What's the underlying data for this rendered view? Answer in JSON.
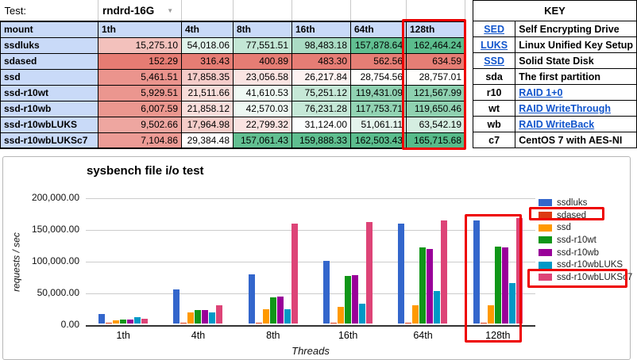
{
  "header": {
    "test_label": "Test:",
    "test_value": "rndrd-16G"
  },
  "table": {
    "columns": [
      "mount",
      "1th",
      "4th",
      "8th",
      "16th",
      "64th",
      "128th"
    ],
    "rows": [
      {
        "name": "ssdluks",
        "values": [
          "15,275.10",
          "54,018.06",
          "77,551.51",
          "98,483.18",
          "157,878.64",
          "162,464.24"
        ]
      },
      {
        "name": "sdased",
        "values": [
          "152.29",
          "316.43",
          "400.89",
          "483.30",
          "562.56",
          "634.59"
        ]
      },
      {
        "name": "ssd",
        "values": [
          "5,461.51",
          "17,858.35",
          "23,056.58",
          "26,217.84",
          "28,754.56",
          "28,757.01"
        ]
      },
      {
        "name": "ssd-r10wt",
        "values": [
          "5,929.51",
          "21,511.66",
          "41,610.53",
          "75,251.12",
          "119,431.09",
          "121,567.99"
        ]
      },
      {
        "name": "ssd-r10wb",
        "values": [
          "6,007.59",
          "21,858.12",
          "42,570.03",
          "76,231.28",
          "117,753.71",
          "119,650.46"
        ]
      },
      {
        "name": "ssd-r10wbLUKS",
        "values": [
          "9,502.66",
          "17,964.98",
          "22,799.32",
          "31,124.00",
          "51,061.11",
          "63,542.19"
        ]
      },
      {
        "name": "ssd-r10wbLUKSc7",
        "values": [
          "7,104.86",
          "29,384.48",
          "157,061.43",
          "159,888.33",
          "162,503.43",
          "165,715.68"
        ]
      }
    ],
    "heatmap": {
      "min": 152.29,
      "mid": 29070,
      "max": 165715.68,
      "min_color": "#E67C73",
      "mid_color": "#FFFFFF",
      "max_color": "#57BB8A"
    }
  },
  "key": {
    "title": "KEY",
    "rows": [
      {
        "abbr": "SED",
        "desc": "Self Encrypting Drive",
        "abbr_link": true,
        "desc_link": false
      },
      {
        "abbr": "LUKS",
        "desc": "Linux Unified Key Setup",
        "abbr_link": true,
        "desc_link": false
      },
      {
        "abbr": "SSD",
        "desc": "Solid State Disk",
        "abbr_link": true,
        "desc_link": false
      },
      {
        "abbr": "sda",
        "desc": "The first partition",
        "abbr_link": false,
        "desc_link": false
      },
      {
        "abbr": "r10",
        "desc": "RAID 1+0",
        "abbr_link": false,
        "desc_link": true
      },
      {
        "abbr": "wt",
        "desc": "RAID WriteThrough",
        "abbr_link": false,
        "desc_link": true
      },
      {
        "abbr": "wb",
        "desc": "RAID WriteBack",
        "abbr_link": false,
        "desc_link": true
      },
      {
        "abbr": "c7",
        "desc": "CentOS 7 with AES-NI",
        "abbr_link": false,
        "desc_link": false
      }
    ]
  },
  "chart_data": {
    "type": "bar",
    "title": "sysbench file i/o test",
    "xlabel": "Threads",
    "ylabel": "requests / sec",
    "categories": [
      "1th",
      "4th",
      "8th",
      "16th",
      "64th",
      "128th"
    ],
    "series": [
      {
        "name": "ssdluks",
        "color": "#3366CC",
        "values": [
          15275.1,
          54018.06,
          77551.51,
          98483.18,
          157878.64,
          162464.24
        ]
      },
      {
        "name": "sdased",
        "color": "#DC3912",
        "values": [
          152.29,
          316.43,
          400.89,
          483.3,
          562.56,
          634.59
        ]
      },
      {
        "name": "ssd",
        "color": "#FF9900",
        "values": [
          5461.51,
          17858.35,
          23056.58,
          26217.84,
          28754.56,
          28757.01
        ]
      },
      {
        "name": "ssd-r10wt",
        "color": "#109618",
        "values": [
          5929.51,
          21511.66,
          41610.53,
          75251.12,
          119431.09,
          121567.99
        ]
      },
      {
        "name": "ssd-r10wb",
        "color": "#990099",
        "values": [
          6007.59,
          21858.12,
          42570.03,
          76231.28,
          117753.71,
          119650.46
        ]
      },
      {
        "name": "ssd-r10wbLUKS",
        "color": "#0099C6",
        "values": [
          9502.66,
          17964.98,
          22799.32,
          31124.0,
          51061.11,
          63542.19
        ]
      },
      {
        "name": "ssd-r10wbLUKSc7",
        "color": "#DD4477",
        "values": [
          7104.86,
          29384.48,
          157061.43,
          159888.33,
          162503.43,
          165715.68
        ]
      }
    ],
    "ylim": [
      0,
      200000
    ],
    "yticks": [
      "0.00",
      "50,000.00",
      "100,000.00",
      "150,000.00",
      "200,000.00"
    ],
    "grid": true,
    "legend_position": "right"
  },
  "colors": {
    "header_fill": "#c9daf8",
    "key_header_fill": "#d8d8d8",
    "link": "#1155cc",
    "annotation": "#ee0000"
  }
}
